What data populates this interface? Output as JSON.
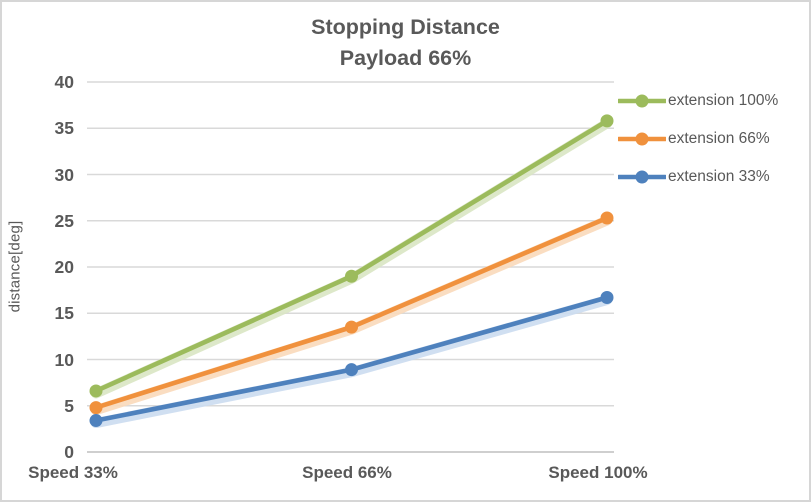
{
  "window": {
    "background": "#ffffff",
    "frame_border_color": "#d6d6d6"
  },
  "chart_data": {
    "type": "line",
    "title": "Stopping Distance",
    "subtitle": "Payload 66%",
    "ylabel": "distance[deg]",
    "xlabel": "",
    "categories": [
      "Speed 33%",
      "Speed 66%",
      "Speed 100%"
    ],
    "yticks": [
      0,
      5,
      10,
      15,
      20,
      25,
      30,
      35,
      40
    ],
    "ylim": [
      0,
      40
    ],
    "grid": true,
    "legend_position": "right",
    "series": [
      {
        "name": "extension 100%",
        "color": "#9cbb5c",
        "glow_color": "#d9e5c3",
        "values": [
          6.6,
          19.0,
          35.8
        ]
      },
      {
        "name": "extension 66%",
        "color": "#f0913d",
        "glow_color": "#fad9ba",
        "values": [
          4.8,
          13.5,
          25.3
        ]
      },
      {
        "name": "extension 33%",
        "color": "#4e81bd",
        "glow_color": "#cbdcf0",
        "values": [
          3.4,
          8.9,
          16.7
        ]
      }
    ],
    "text_color": "#595959",
    "gridline_color": "#d9d9d9",
    "axis_line_color": "#bfbfbf"
  }
}
